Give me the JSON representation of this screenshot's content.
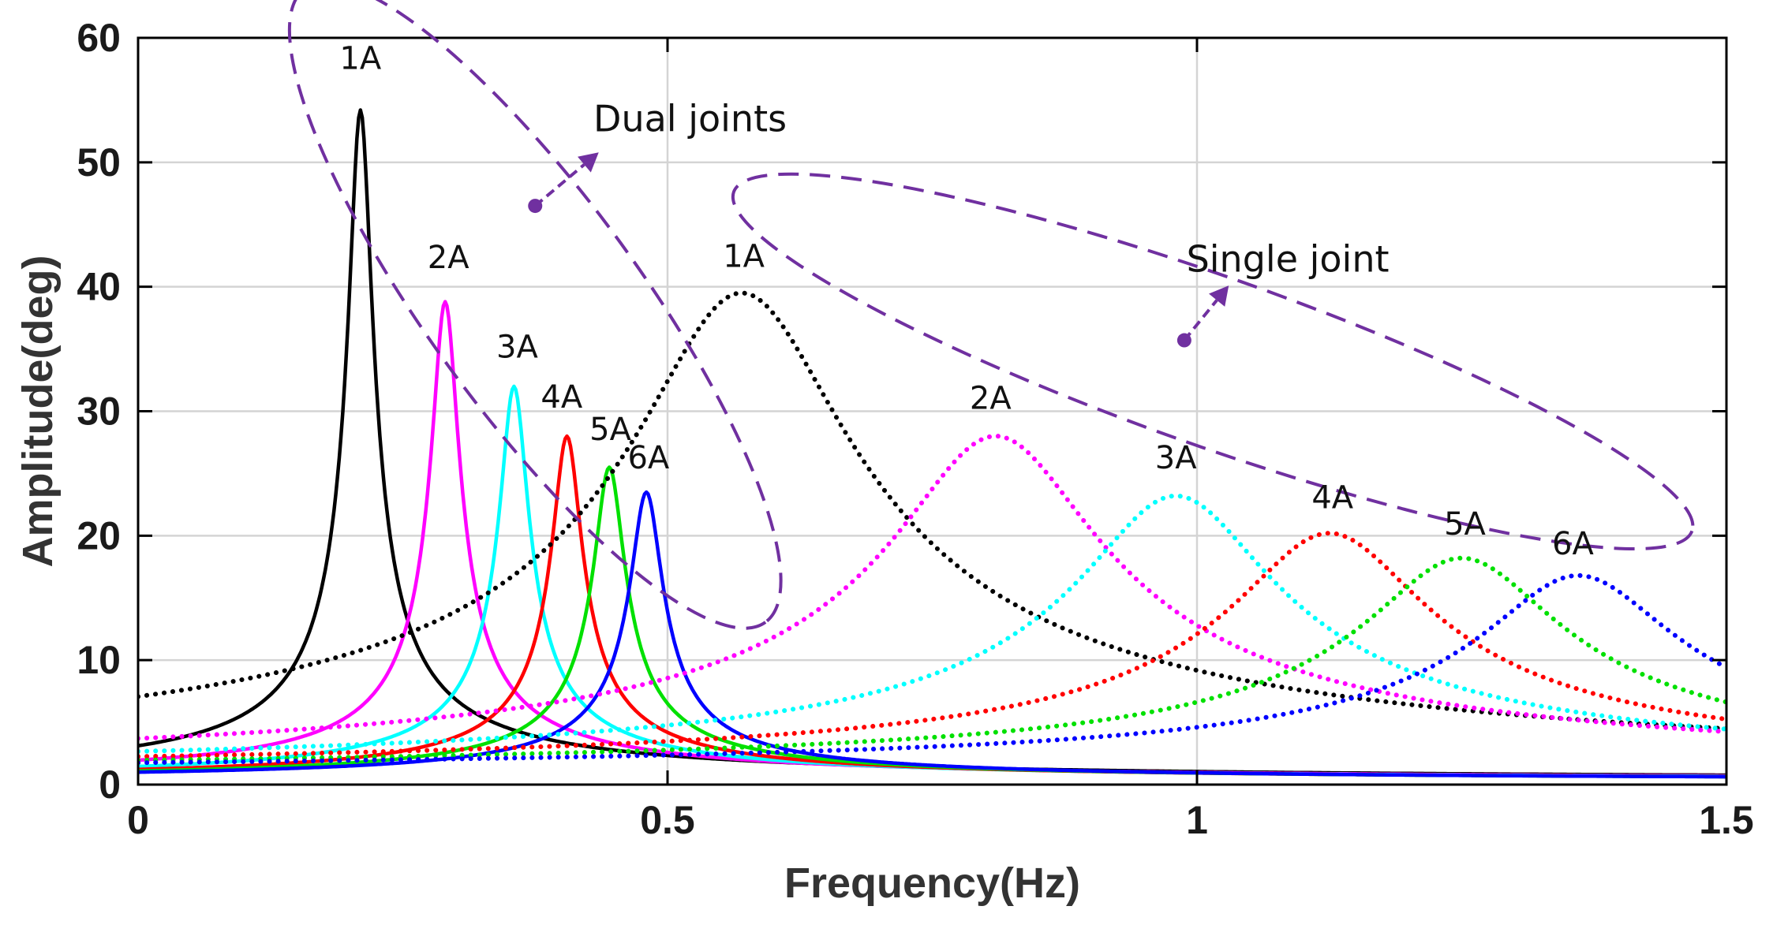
{
  "chart_data": {
    "type": "line",
    "title": "",
    "xlabel": "Frequency(Hz)",
    "ylabel": "Amplitude(deg)",
    "xlim": [
      0,
      1.5
    ],
    "ylim": [
      0,
      60
    ],
    "grid": true,
    "x_ticks": [
      {
        "value": 0,
        "label": "0"
      },
      {
        "value": 0.5,
        "label": "0.5"
      },
      {
        "value": 1,
        "label": "1"
      },
      {
        "value": 1.5,
        "label": "1.5"
      }
    ],
    "y_ticks": [
      {
        "value": 0,
        "label": "0"
      },
      {
        "value": 10,
        "label": "10"
      },
      {
        "value": 20,
        "label": "20"
      },
      {
        "value": 30,
        "label": "30"
      },
      {
        "value": 40,
        "label": "40"
      },
      {
        "value": 50,
        "label": "50"
      },
      {
        "value": 60,
        "label": "60"
      }
    ],
    "series": [
      {
        "name": "Dual joints 1A",
        "group": "dual",
        "style": "solid",
        "color": "#000000",
        "peak_freq": 0.21,
        "peak_amp": 54.2,
        "width": 0.011,
        "baseline": 0.3
      },
      {
        "name": "Dual joints 2A",
        "group": "dual",
        "style": "solid",
        "color": "#ff00ff",
        "peak_freq": 0.29,
        "peak_amp": 38.8,
        "width": 0.0125,
        "baseline": 0.3
      },
      {
        "name": "Dual joints 3A",
        "group": "dual",
        "style": "solid",
        "color": "#00ffff",
        "peak_freq": 0.355,
        "peak_amp": 32.0,
        "width": 0.013,
        "baseline": 0.3
      },
      {
        "name": "Dual joints 4A",
        "group": "dual",
        "style": "solid",
        "color": "#ff0000",
        "peak_freq": 0.405,
        "peak_amp": 28.0,
        "width": 0.0135,
        "baseline": 0.3
      },
      {
        "name": "Dual joints 5A",
        "group": "dual",
        "style": "solid",
        "color": "#00e000",
        "peak_freq": 0.445,
        "peak_amp": 25.5,
        "width": 0.014,
        "baseline": 0.3
      },
      {
        "name": "Dual joints 6A",
        "group": "dual",
        "style": "solid",
        "color": "#0000ff",
        "peak_freq": 0.48,
        "peak_amp": 23.5,
        "width": 0.0145,
        "baseline": 0.3
      },
      {
        "name": "Single joint 1A",
        "group": "single",
        "style": "dotted",
        "color": "#000000",
        "peak_freq": 0.57,
        "peak_amp": 39.5,
        "width": 0.1,
        "baseline": 0.3
      },
      {
        "name": "Single joint 2A",
        "group": "single",
        "style": "dotted",
        "color": "#ff00ff",
        "peak_freq": 0.81,
        "peak_amp": 28.0,
        "width": 0.095,
        "baseline": 0.5
      },
      {
        "name": "Single joint 3A",
        "group": "single",
        "style": "dotted",
        "color": "#00ffff",
        "peak_freq": 0.98,
        "peak_amp": 23.2,
        "width": 0.09,
        "baseline": 0.6
      },
      {
        "name": "Single joint 4A",
        "group": "single",
        "style": "dotted",
        "color": "#ff0000",
        "peak_freq": 1.125,
        "peak_amp": 20.2,
        "width": 0.09,
        "baseline": 0.7
      },
      {
        "name": "Single joint 5A",
        "group": "single",
        "style": "dotted",
        "color": "#00e000",
        "peak_freq": 1.25,
        "peak_amp": 18.2,
        "width": 0.09,
        "baseline": 0.7
      },
      {
        "name": "Single joint 6A",
        "group": "single",
        "style": "dotted",
        "color": "#0000ff",
        "peak_freq": 1.36,
        "peak_amp": 16.8,
        "width": 0.09,
        "baseline": 0.7
      }
    ],
    "peak_labels": [
      {
        "text": "1A",
        "x": 0.21,
        "y": 57.5
      },
      {
        "text": "2A",
        "x": 0.293,
        "y": 41.5
      },
      {
        "text": "3A",
        "x": 0.358,
        "y": 34.3
      },
      {
        "text": "4A",
        "x": 0.4,
        "y": 30.3
      },
      {
        "text": "5A",
        "x": 0.446,
        "y": 27.7
      },
      {
        "text": "6A",
        "x": 0.482,
        "y": 25.4
      },
      {
        "text": "1A",
        "x": 0.572,
        "y": 41.6
      },
      {
        "text": "2A",
        "x": 0.805,
        "y": 30.2
      },
      {
        "text": "3A",
        "x": 0.98,
        "y": 25.4
      },
      {
        "text": "4A",
        "x": 1.128,
        "y": 22.2
      },
      {
        "text": "5A",
        "x": 1.253,
        "y": 20.1
      },
      {
        "text": "6A",
        "x": 1.355,
        "y": 18.5
      }
    ],
    "annotations": [
      {
        "text": "Dual joints",
        "group": "dual",
        "x": 0.43,
        "y": 52.5,
        "arrow_from": [
          0.375,
          46.5
        ],
        "arrow_to": [
          0.435,
          50.8
        ],
        "ellipse_center": [
          0.375,
          38.5
        ],
        "ellipse_a": 0.37,
        "ellipse_b": 8.5,
        "ellipse_tilt_deg": 54
      },
      {
        "text": "Single joint",
        "group": "single",
        "x": 0.99,
        "y": 41.2,
        "arrow_from": [
          0.988,
          35.7
        ],
        "arrow_to": [
          1.03,
          40.1
        ],
        "ellipse_center": [
          1.015,
          34.0
        ],
        "ellipse_a": 0.48,
        "ellipse_b": 6.8,
        "ellipse_tilt_deg": 19.5
      }
    ],
    "annotation_color": "#7030a0"
  }
}
